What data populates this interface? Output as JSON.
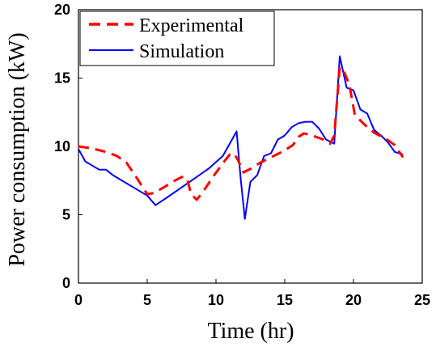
{
  "chart_data": {
    "type": "line",
    "xlabel": "Time (hr)",
    "ylabel": "Power consumption (kW)",
    "xlim": [
      0,
      25
    ],
    "ylim": [
      0,
      20
    ],
    "xticks": [
      "0",
      "5",
      "10",
      "15",
      "20",
      "25"
    ],
    "yticks": [
      "0",
      "5",
      "10",
      "15",
      "20"
    ],
    "grid": false,
    "legend_position": "top-left",
    "series": [
      {
        "name": "Experimental",
        "color": "#ff0000",
        "style": "dashed",
        "x": [
          0,
          1,
          2,
          2.8,
          3.5,
          4.3,
          5.0,
          5.5,
          6.2,
          7.0,
          7.6,
          7.9,
          8.2,
          8.6,
          9.0,
          9.8,
          10.6,
          11.0,
          11.3,
          11.6,
          12.0,
          12.6,
          13.2,
          14.0,
          14.8,
          15.6,
          16.0,
          16.4,
          17.0,
          17.8,
          18.3,
          18.6,
          19.0,
          19.3,
          19.7,
          20.1,
          20.8,
          21.5,
          22.3,
          23.0,
          23.6
        ],
        "y": [
          10.0,
          9.85,
          9.6,
          9.3,
          8.8,
          7.6,
          6.5,
          6.6,
          7.0,
          7.5,
          7.8,
          7.6,
          6.5,
          6.1,
          6.6,
          7.8,
          8.9,
          9.4,
          9.5,
          9.0,
          8.1,
          8.4,
          8.8,
          9.2,
          9.6,
          10.1,
          10.7,
          10.95,
          10.8,
          10.5,
          10.2,
          10.8,
          15.8,
          15.5,
          14.5,
          12.3,
          11.6,
          11.0,
          10.6,
          10.1,
          9.2
        ]
      },
      {
        "name": "Simulation",
        "color": "#0000ff",
        "style": "solid",
        "x": [
          0,
          0.5,
          1.0,
          1.5,
          2.0,
          2.5,
          3.0,
          4.0,
          5.0,
          5.6,
          6.5,
          7.5,
          8.5,
          9.5,
          10.5,
          11.0,
          11.5,
          11.8,
          12.1,
          12.5,
          13.0,
          13.5,
          14.0,
          14.5,
          15.0,
          15.5,
          16.0,
          16.5,
          17.0,
          17.5,
          18.0,
          18.6,
          19.0,
          19.5,
          20.0,
          20.5,
          21.0,
          21.5,
          22.0,
          22.5,
          23.0,
          23.6
        ],
        "y": [
          9.8,
          8.9,
          8.6,
          8.3,
          8.3,
          7.9,
          7.6,
          7.0,
          6.4,
          5.7,
          6.3,
          7.0,
          7.7,
          8.4,
          9.3,
          10.2,
          11.1,
          7.6,
          4.7,
          7.4,
          7.9,
          9.3,
          9.5,
          10.5,
          10.8,
          11.4,
          11.7,
          11.8,
          11.8,
          11.3,
          10.5,
          10.2,
          16.6,
          14.3,
          14.1,
          12.7,
          12.4,
          11.2,
          10.8,
          10.3,
          9.6,
          9.4
        ]
      }
    ]
  }
}
